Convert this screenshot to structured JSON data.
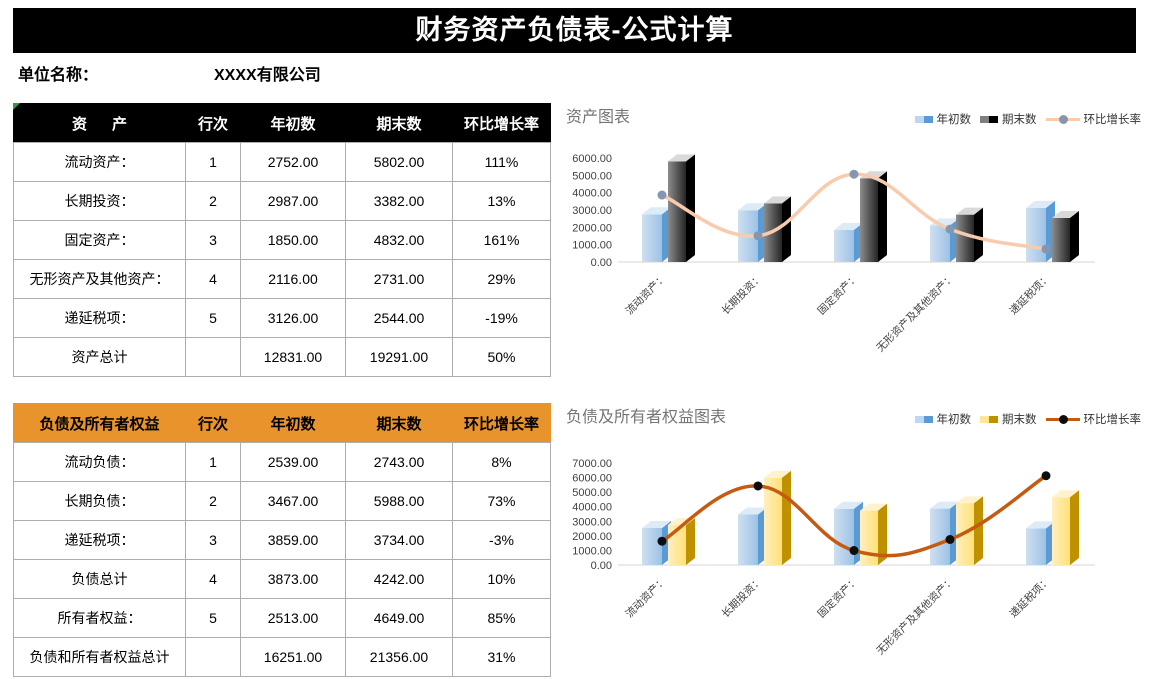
{
  "banner": {
    "title": "财务资产负债表-公式计算"
  },
  "company": {
    "label": "单位名称：",
    "value": "XXXX有限公司"
  },
  "tables": [
    {
      "name": "assets",
      "header_bg": "#000000",
      "header_fg": "#FFFFFF",
      "headers": [
        "资      产",
        "行次",
        "年初数",
        "期末数",
        "环比增长率"
      ],
      "rows": [
        [
          "流动资产：",
          "1",
          "2752.00",
          "5802.00",
          "111%"
        ],
        [
          "长期投资：",
          "2",
          "2987.00",
          "3382.00",
          "13%"
        ],
        [
          "固定资产：",
          "3",
          "1850.00",
          "4832.00",
          "161%"
        ],
        [
          "无形资产及其他资产：",
          "4",
          "2116.00",
          "2731.00",
          "29%"
        ],
        [
          "递延税项：",
          "5",
          "3126.00",
          "2544.00",
          "-19%"
        ],
        [
          "资产总计",
          "",
          "12831.00",
          "19291.00",
          "50%"
        ]
      ]
    },
    {
      "name": "liabilities",
      "header_bg": "#E8932C",
      "header_fg": "#000000",
      "headers": [
        "负债及所有者权益",
        "行次",
        "年初数",
        "期末数",
        "环比增长率"
      ],
      "rows": [
        [
          "流动负债：",
          "1",
          "2539.00",
          "2743.00",
          "8%"
        ],
        [
          "长期负债：",
          "2",
          "3467.00",
          "5988.00",
          "73%"
        ],
        [
          "递延税项：",
          "3",
          "3859.00",
          "3734.00",
          "-3%"
        ],
        [
          "负债总计",
          "4",
          "3873.00",
          "4242.00",
          "10%"
        ],
        [
          "所有者权益：",
          "5",
          "2513.00",
          "4649.00",
          "85%"
        ],
        [
          "负债和所有者权益总计",
          "",
          "16251.00",
          "21356.00",
          "31%"
        ]
      ]
    }
  ],
  "chart_data": [
    {
      "type": "bar",
      "subtype": "3d-column-with-smooth-line",
      "title": "资产图表",
      "categories": [
        "流动资产：",
        "长期投资：",
        "固定资产：",
        "无形资产及其他资产：",
        "递延税项："
      ],
      "ylim": [
        0,
        6000
      ],
      "ytick_step": 1000,
      "secondary_ylim_pct": [
        -50,
        200
      ],
      "grid": false,
      "legend_position": "top-right",
      "series": [
        {
          "name": "年初数",
          "kind": "bar",
          "values": [
            2752,
            2987,
            1850,
            2116,
            3126
          ],
          "front": [
            "#CFE0F1",
            "#9CC2E5"
          ],
          "side": "#5B9BD5",
          "top": "#DDEBF7",
          "legend": [
            "#BDD7EE",
            "#5B9BD5"
          ]
        },
        {
          "name": "期末数",
          "kind": "bar",
          "values": [
            5802,
            3382,
            4832,
            2731,
            2544
          ],
          "front": [
            "#8C8C8C",
            "#262626"
          ],
          "side": "#000000",
          "top": "#D9D9D9",
          "legend": [
            "#7F7F7F",
            "#000000"
          ]
        },
        {
          "name": "环比增长率",
          "kind": "line",
          "values_pct": [
            111,
            13,
            161,
            29,
            -19
          ],
          "color": "#F8CBAD",
          "marker": "#8497B0"
        }
      ]
    },
    {
      "type": "bar",
      "subtype": "3d-column-with-smooth-line",
      "title": "负债及所有者权益图表",
      "categories": [
        "流动资产：",
        "长期投资：",
        "固定资产：",
        "无形资产及其他资产：",
        "递延税项："
      ],
      "ylim": [
        0,
        7000
      ],
      "ytick_step": 1000,
      "secondary_ylim_pct": [
        -20,
        100
      ],
      "grid": false,
      "legend_position": "top-right",
      "series": [
        {
          "name": "年初数",
          "kind": "bar",
          "values": [
            2539,
            3467,
            3859,
            3873,
            2513
          ],
          "front": [
            "#CFE0F1",
            "#9CC2E5"
          ],
          "side": "#5B9BD5",
          "top": "#DDEBF7",
          "legend": [
            "#BDD7EE",
            "#5B9BD5"
          ]
        },
        {
          "name": "期末数",
          "kind": "bar",
          "values": [
            2743,
            5988,
            3734,
            4242,
            4649
          ],
          "front": [
            "#FFEFC0",
            "#FFE176"
          ],
          "side": "#BF9000",
          "top": "#FFF2CC",
          "legend": [
            "#FFE699",
            "#BF9000"
          ]
        },
        {
          "name": "环比增长率",
          "kind": "line",
          "values_pct": [
            8,
            73,
            -3,
            10,
            85
          ],
          "color": "#C55A11",
          "marker": "#0D0D0D"
        }
      ]
    }
  ]
}
